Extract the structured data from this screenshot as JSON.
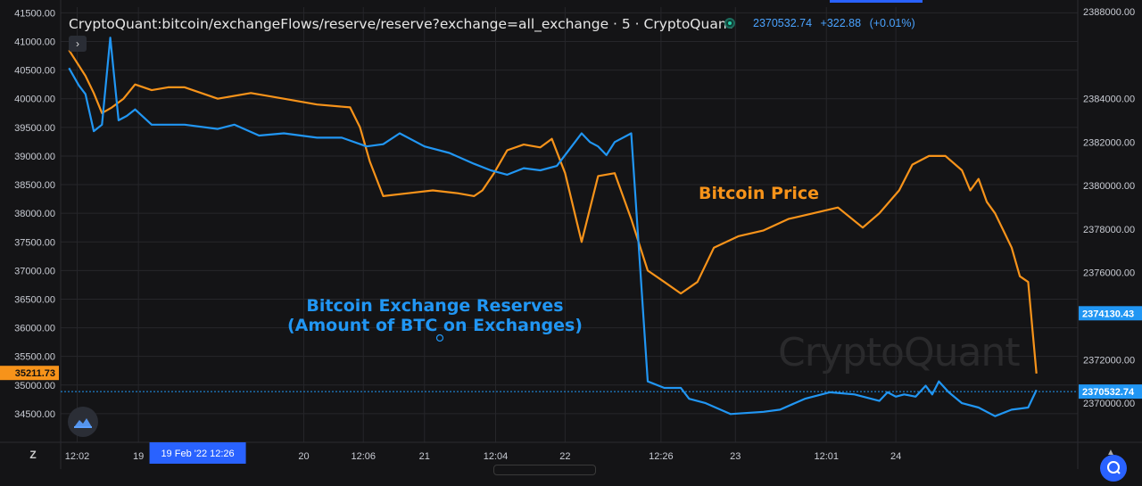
{
  "header": {
    "title": "CryptoQuant:bitcoin/exchangeFlows/reserve/reserve?exchange=all_exchange · 5 · CryptoQuant",
    "collapse_icon": "chevron-right-icon",
    "last_value": "2370532.74",
    "change": "+322.88",
    "change_pct": "(+0.01%)"
  },
  "annotations": {
    "reserves_label_line1": "Bitcoin Exchange Reserves",
    "reserves_label_line2": "(Amount of BTC on Exchanges)",
    "price_label": "Bitcoin Price"
  },
  "watermark": "CryptoQuant",
  "toolbar": {
    "z_label": "Z"
  },
  "colors": {
    "background": "#141416",
    "reserve_series": "#2196f3",
    "price_series": "#f7931a",
    "grid": "#26262a",
    "axis_text": "#c9ccd4",
    "crosshair_label": "#2962ff"
  },
  "chart_data": {
    "type": "line",
    "grid": true,
    "x_tick_labels": [
      "12:02",
      "19",
      "19 Feb '22  12:26",
      "20",
      "12:06",
      "21",
      "12:04",
      "22",
      "12:26",
      "23",
      "12:01",
      "24"
    ],
    "left_axis": {
      "series": "Bitcoin Price",
      "ylim": [
        34000,
        41600
      ],
      "ticks": [
        41500,
        41000,
        40500,
        40000,
        39500,
        39000,
        38500,
        38000,
        37500,
        37000,
        36500,
        36000,
        35500,
        35000,
        34500
      ],
      "tick_labels": [
        "41500.00",
        "41000.00",
        "40500.00",
        "40000.00",
        "39500.00",
        "39000.00",
        "38500.00",
        "38000.00",
        "37500.00",
        "37000.00",
        "36500.00",
        "36000.00",
        "35500.00",
        "35000.00",
        "34500.00"
      ],
      "last_value_label": "35211.73"
    },
    "right_axis": {
      "series": "Bitcoin Exchange Reserves",
      "ylim": [
        2368200,
        2388200
      ],
      "ticks": [
        2388000,
        2384000,
        2382000,
        2380000,
        2378000,
        2376000,
        2372000,
        2370000
      ],
      "tick_labels": [
        "2388000.00",
        "2384000.00",
        "2382000.00",
        "2380000.00",
        "2378000.00",
        "2376000.00",
        "2372000.00",
        "2370000.00"
      ],
      "marker_labels": [
        {
          "value": 2374130.43,
          "text": "2374130.43"
        },
        {
          "value": 2370532.74,
          "text": "2370532.74"
        }
      ]
    },
    "x_range_days": [
      18.25,
      24.4
    ],
    "series": [
      {
        "name": "Bitcoin Price",
        "axis": "left",
        "x": [
          18.3,
          18.4,
          18.45,
          18.5,
          18.56,
          18.63,
          18.7,
          18.8,
          18.9,
          19.0,
          19.2,
          19.4,
          19.6,
          19.8,
          20.0,
          20.06,
          20.12,
          20.2,
          20.35,
          20.5,
          20.65,
          20.75,
          20.8,
          20.87,
          20.95,
          21.05,
          21.15,
          21.22,
          21.3,
          21.4,
          21.5,
          21.6,
          21.7,
          21.8,
          21.9,
          22.0,
          22.1,
          22.2,
          22.35,
          22.5,
          22.65,
          22.8,
          22.95,
          23.1,
          23.2,
          23.32,
          23.4,
          23.5,
          23.6,
          23.7,
          23.75,
          23.8,
          23.85,
          23.9,
          23.95,
          24.0,
          24.05,
          24.1,
          24.15
        ],
        "y": [
          40850,
          40400,
          40100,
          39750,
          39850,
          40000,
          40250,
          40150,
          40200,
          40200,
          40000,
          40100,
          40000,
          39900,
          39850,
          39500,
          38900,
          38300,
          38350,
          38400,
          38350,
          38300,
          38400,
          38700,
          39100,
          39200,
          39150,
          39300,
          38700,
          37500,
          38650,
          38700,
          37900,
          37000,
          36800,
          36600,
          36800,
          37400,
          37600,
          37700,
          37900,
          38000,
          38100,
          37750,
          38000,
          38400,
          38850,
          39000,
          39000,
          38750,
          38400,
          38600,
          38200,
          38000,
          37700,
          37400,
          36900,
          36800,
          35200
        ]
      },
      {
        "name": "Bitcoin Exchange Reserves",
        "axis": "right",
        "x": [
          18.3,
          18.36,
          18.4,
          18.45,
          18.5,
          18.55,
          18.6,
          18.65,
          18.7,
          18.8,
          19.0,
          19.2,
          19.3,
          19.45,
          19.6,
          19.8,
          19.95,
          20.1,
          20.2,
          20.3,
          20.45,
          20.6,
          20.75,
          20.85,
          20.9,
          20.95,
          21.05,
          21.15,
          21.25,
          21.4,
          21.45,
          21.5,
          21.55,
          21.6,
          21.7,
          21.8,
          21.9,
          22.0,
          22.05,
          22.15,
          22.3,
          22.5,
          22.6,
          22.75,
          22.9,
          23.05,
          23.2,
          23.25,
          23.3,
          23.35,
          23.42,
          23.48,
          23.52,
          23.56,
          23.62,
          23.7,
          23.8,
          23.9,
          24.0,
          24.1,
          24.15
        ],
        "y": [
          2385400,
          2384600,
          2384200,
          2382500,
          2382800,
          2386800,
          2383000,
          2383200,
          2383500,
          2382800,
          2382800,
          2382600,
          2382800,
          2382300,
          2382400,
          2382200,
          2382200,
          2381800,
          2381900,
          2382400,
          2381800,
          2381500,
          2381000,
          2380700,
          2380600,
          2380500,
          2380800,
          2380700,
          2380900,
          2382400,
          2382000,
          2381800,
          2381400,
          2382000,
          2382400,
          2371000,
          2370700,
          2370700,
          2370200,
          2370000,
          2369500,
          2369600,
          2369700,
          2370200,
          2370500,
          2370400,
          2370100,
          2370500,
          2370300,
          2370400,
          2370300,
          2370800,
          2370400,
          2371000,
          2370500,
          2370000,
          2369800,
          2369400,
          2369700,
          2369800,
          2370600
        ]
      }
    ]
  }
}
